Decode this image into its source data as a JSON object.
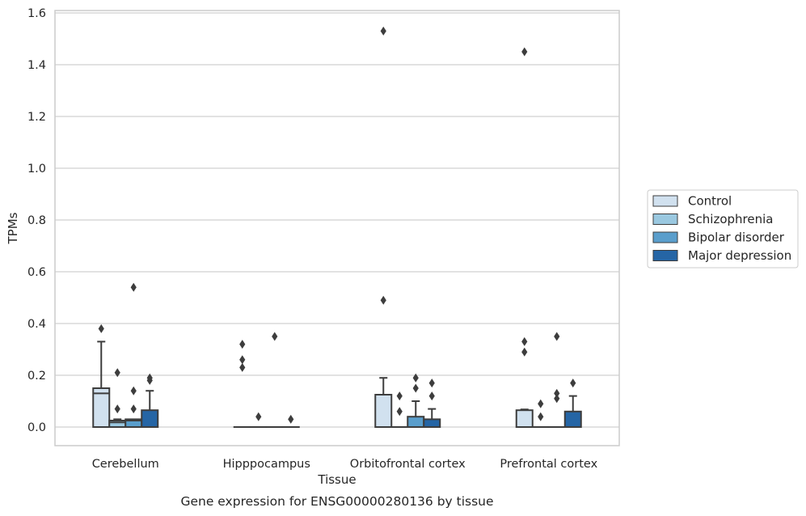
{
  "chart_data": {
    "type": "box",
    "xlabel": "Tissue",
    "ylabel": "TPMs",
    "caption": "Gene expression for ENSG00000280136 by tissue",
    "ylim": [
      -0.07,
      1.61
    ],
    "yticks": [
      "0.0",
      "0.2",
      "0.4",
      "0.6",
      "0.8",
      "1.0",
      "1.2",
      "1.4",
      "1.6"
    ],
    "grid": true,
    "legend_position": "right",
    "categories": [
      "Cerebellum",
      "Hipppocampus",
      "Orbitofrontal cortex",
      "Prefrontal cortex"
    ],
    "series": [
      {
        "name": "Control",
        "color": "#d1e1ef",
        "boxes": [
          {
            "q1": 0.0,
            "median": 0.13,
            "q3": 0.15,
            "whisker_low": 0.0,
            "whisker_high": 0.33,
            "outliers": [
              0.38
            ]
          },
          {
            "q1": 0.0,
            "median": 0.0,
            "q3": 0.0,
            "whisker_low": 0.0,
            "whisker_high": 0.0,
            "outliers": [
              0.32,
              0.26,
              0.23
            ]
          },
          {
            "q1": 0.0,
            "median": 0.0,
            "q3": 0.125,
            "whisker_low": 0.0,
            "whisker_high": 0.19,
            "outliers": [
              1.53,
              0.49
            ]
          },
          {
            "q1": 0.0,
            "median": 0.0,
            "q3": 0.065,
            "whisker_low": 0.0,
            "whisker_high": 0.068,
            "outliers": [
              1.45,
              0.33,
              0.29
            ]
          }
        ]
      },
      {
        "name": "Schizophrenia",
        "color": "#9ac8e0",
        "boxes": [
          {
            "q1": 0.0,
            "median": 0.018,
            "q3": 0.025,
            "whisker_low": 0.0,
            "whisker_high": 0.03,
            "outliers": [
              0.21,
              0.07
            ]
          },
          {
            "q1": 0.0,
            "median": 0.0,
            "q3": 0.0,
            "whisker_low": 0.0,
            "whisker_high": 0.0,
            "outliers": [
              0.04
            ]
          },
          {
            "q1": 0.0,
            "median": 0.0,
            "q3": 0.0,
            "whisker_low": 0.0,
            "whisker_high": 0.0,
            "outliers": [
              0.12,
              0.06
            ]
          },
          {
            "q1": 0.0,
            "median": 0.0,
            "q3": 0.0,
            "whisker_low": 0.0,
            "whisker_high": 0.0,
            "outliers": [
              0.09,
              0.04
            ]
          }
        ]
      },
      {
        "name": "Bipolar disorder",
        "color": "#5a9ecc",
        "boxes": [
          {
            "q1": 0.0,
            "median": 0.025,
            "q3": 0.03,
            "whisker_low": 0.0,
            "whisker_high": 0.03,
            "outliers": [
              0.54,
              0.14,
              0.07
            ]
          },
          {
            "q1": 0.0,
            "median": 0.0,
            "q3": 0.0,
            "whisker_low": 0.0,
            "whisker_high": 0.0,
            "outliers": [
              0.35
            ]
          },
          {
            "q1": 0.0,
            "median": 0.0,
            "q3": 0.04,
            "whisker_low": 0.0,
            "whisker_high": 0.1,
            "outliers": [
              0.19,
              0.15
            ]
          },
          {
            "q1": 0.0,
            "median": 0.0,
            "q3": 0.0,
            "whisker_low": 0.0,
            "whisker_high": 0.0,
            "outliers": [
              0.35,
              0.13,
              0.11
            ]
          }
        ]
      },
      {
        "name": "Major depression",
        "color": "#2565a5",
        "boxes": [
          {
            "q1": 0.0,
            "median": 0.0,
            "q3": 0.065,
            "whisker_low": 0.0,
            "whisker_high": 0.14,
            "outliers": [
              0.19,
              0.18
            ]
          },
          {
            "q1": 0.0,
            "median": 0.0,
            "q3": 0.0,
            "whisker_low": 0.0,
            "whisker_high": 0.0,
            "outliers": [
              0.03
            ]
          },
          {
            "q1": 0.0,
            "median": 0.0,
            "q3": 0.03,
            "whisker_low": 0.0,
            "whisker_high": 0.07,
            "outliers": [
              0.17,
              0.12
            ]
          },
          {
            "q1": 0.0,
            "median": 0.0,
            "q3": 0.06,
            "whisker_low": 0.0,
            "whisker_high": 0.12,
            "outliers": [
              0.17
            ]
          }
        ]
      }
    ]
  }
}
